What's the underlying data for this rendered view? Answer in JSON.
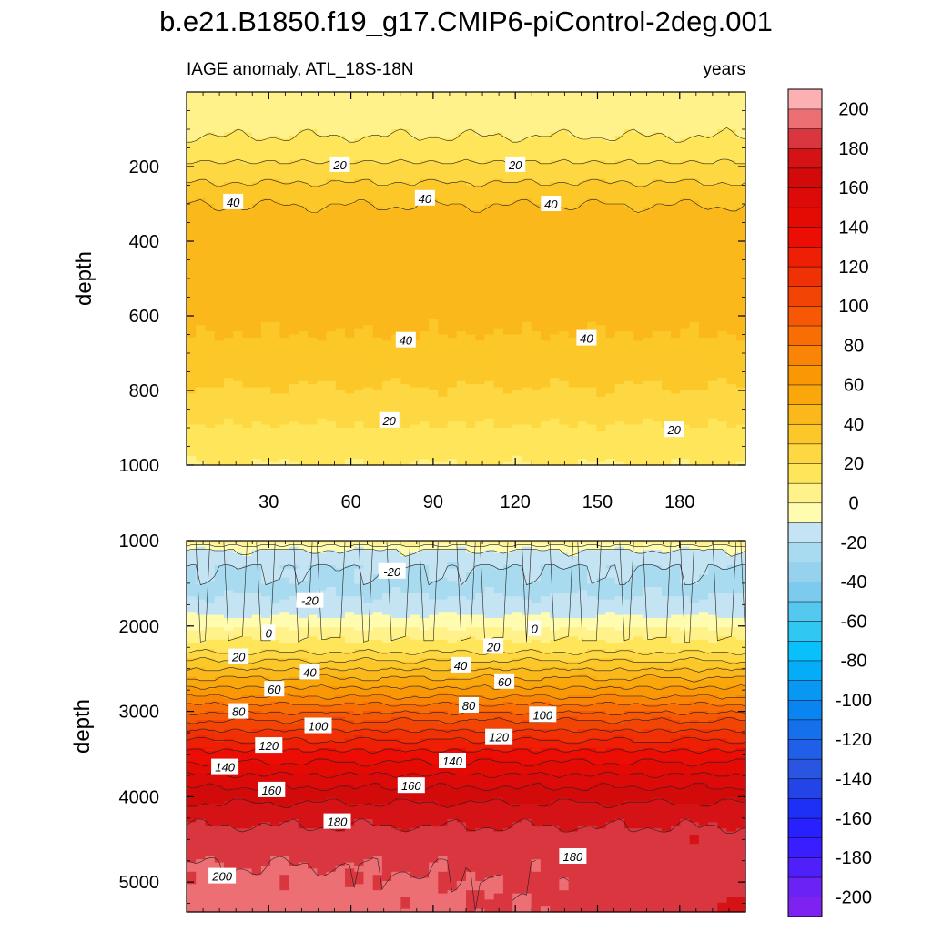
{
  "title": "b.e21.B1850.f19_g17.CMIP6-piControl-2deg.001",
  "chart_data": [
    {
      "type": "heatmap",
      "panel": "upper",
      "left_label": "IAGE anomaly, ATL_18S-18N",
      "right_label": "years",
      "ylabel": "depth",
      "xlim": [
        0,
        204
      ],
      "ylim": [
        0,
        1000
      ],
      "y_reversed": true,
      "xticks": [
        30,
        60,
        90,
        120,
        150,
        180
      ],
      "yticks": [
        200,
        400,
        600,
        800,
        1000
      ],
      "depth_profile": [
        {
          "depth": 0,
          "value": 2
        },
        {
          "depth": 60,
          "value": 4
        },
        {
          "depth": 110,
          "value": 9
        },
        {
          "depth": 170,
          "value": 17
        },
        {
          "depth": 230,
          "value": 28
        },
        {
          "depth": 280,
          "value": 37
        },
        {
          "depth": 340,
          "value": 45
        },
        {
          "depth": 440,
          "value": 49
        },
        {
          "depth": 550,
          "value": 45
        },
        {
          "depth": 650,
          "value": 40
        },
        {
          "depth": 760,
          "value": 33
        },
        {
          "depth": 880,
          "value": 21
        },
        {
          "depth": 1000,
          "value": 10
        }
      ],
      "contour_labels": [
        {
          "text": "20",
          "x": 56,
          "depth": 195
        },
        {
          "text": "20",
          "x": 120,
          "depth": 195
        },
        {
          "text": "40",
          "x": 17,
          "depth": 295
        },
        {
          "text": "40",
          "x": 87,
          "depth": 285
        },
        {
          "text": "40",
          "x": 133,
          "depth": 300
        },
        {
          "text": "40",
          "x": 80,
          "depth": 665
        },
        {
          "text": "40",
          "x": 146,
          "depth": 660
        },
        {
          "text": "20",
          "x": 74,
          "depth": 880
        },
        {
          "text": "20",
          "x": 178,
          "depth": 905
        }
      ]
    },
    {
      "type": "heatmap",
      "panel": "lower",
      "ylabel": "depth",
      "xlim": [
        0,
        204
      ],
      "ylim": [
        1000,
        5350
      ],
      "y_reversed": true,
      "yticks": [
        1000,
        2000,
        3000,
        4000,
        5000
      ],
      "depth_profile": [
        {
          "depth": 1000,
          "value": 10
        },
        {
          "depth": 1100,
          "value": -10
        },
        {
          "depth": 1300,
          "value": -20
        },
        {
          "depth": 1600,
          "value": -22
        },
        {
          "depth": 1850,
          "value": -12
        },
        {
          "depth": 2050,
          "value": 2
        },
        {
          "depth": 2300,
          "value": 20
        },
        {
          "depth": 2550,
          "value": 45
        },
        {
          "depth": 2800,
          "value": 68
        },
        {
          "depth": 3100,
          "value": 100
        },
        {
          "depth": 3450,
          "value": 130
        },
        {
          "depth": 3800,
          "value": 155
        },
        {
          "depth": 4100,
          "value": 172
        },
        {
          "depth": 4400,
          "value": 182
        },
        {
          "depth": 4800,
          "value": 190
        },
        {
          "depth": 5350,
          "value": 196
        }
      ],
      "contour_labels": [
        {
          "text": "-20",
          "x": 75,
          "depth": 1360
        },
        {
          "text": "-20",
          "x": 45,
          "depth": 1700
        },
        {
          "text": "0",
          "x": 30,
          "depth": 2080
        },
        {
          "text": "0",
          "x": 127,
          "depth": 2030
        },
        {
          "text": "20",
          "x": 19,
          "depth": 2360
        },
        {
          "text": "20",
          "x": 112,
          "depth": 2240
        },
        {
          "text": "40",
          "x": 45,
          "depth": 2540
        },
        {
          "text": "40",
          "x": 100,
          "depth": 2460
        },
        {
          "text": "60",
          "x": 32,
          "depth": 2740
        },
        {
          "text": "60",
          "x": 116,
          "depth": 2650
        },
        {
          "text": "80",
          "x": 19,
          "depth": 3000
        },
        {
          "text": "80",
          "x": 103,
          "depth": 2930
        },
        {
          "text": "100",
          "x": 48,
          "depth": 3170
        },
        {
          "text": "100",
          "x": 130,
          "depth": 3040
        },
        {
          "text": "120",
          "x": 30,
          "depth": 3400
        },
        {
          "text": "120",
          "x": 114,
          "depth": 3300
        },
        {
          "text": "140",
          "x": 14,
          "depth": 3650
        },
        {
          "text": "140",
          "x": 97,
          "depth": 3580
        },
        {
          "text": "160",
          "x": 31,
          "depth": 3920
        },
        {
          "text": "160",
          "x": 82,
          "depth": 3870
        },
        {
          "text": "180",
          "x": 55,
          "depth": 4290
        },
        {
          "text": "180",
          "x": 141,
          "depth": 4700
        },
        {
          "text": "200",
          "x": 13,
          "depth": 4930
        }
      ]
    }
  ],
  "colorbar": {
    "levels": [
      -200,
      -190,
      -180,
      -170,
      -160,
      -150,
      -140,
      -130,
      -120,
      -110,
      -100,
      -90,
      -80,
      -70,
      -60,
      -50,
      -40,
      -30,
      -20,
      -10,
      0,
      10,
      20,
      30,
      40,
      50,
      60,
      70,
      80,
      90,
      100,
      110,
      120,
      130,
      140,
      150,
      160,
      170,
      180,
      190,
      200
    ],
    "colors": [
      "#7e22f0",
      "#6a22f5",
      "#5020fa",
      "#3a1eff",
      "#2820ff",
      "#1e30f5",
      "#2345e8",
      "#2a55e0",
      "#2060e8",
      "#1570ec",
      "#0a84f0",
      "#0898f4",
      "#05acf8",
      "#0ac0fa",
      "#30c8f2",
      "#55c8f0",
      "#7ccbee",
      "#96d2ee",
      "#a8dbf0",
      "#c4e4f4",
      "#fffcb0",
      "#fff28a",
      "#ffe55a",
      "#fed842",
      "#fcc829",
      "#fbb81a",
      "#faa70c",
      "#f99705",
      "#f98405",
      "#f86e05",
      "#f65805",
      "#f24405",
      "#f03005",
      "#ee1f05",
      "#ec0d05",
      "#e40b05",
      "#dc0a08",
      "#d20a0a",
      "#d51215",
      "#d93640",
      "#ec6f74",
      "#fdb0b3"
    ],
    "tick_labels": [
      "200",
      "180",
      "160",
      "140",
      "120",
      "100",
      "80",
      "60",
      "40",
      "20",
      "0",
      "-20",
      "-40",
      "-60",
      "-80",
      "-100",
      "-120",
      "-140",
      "-160",
      "-180",
      "-200"
    ]
  }
}
